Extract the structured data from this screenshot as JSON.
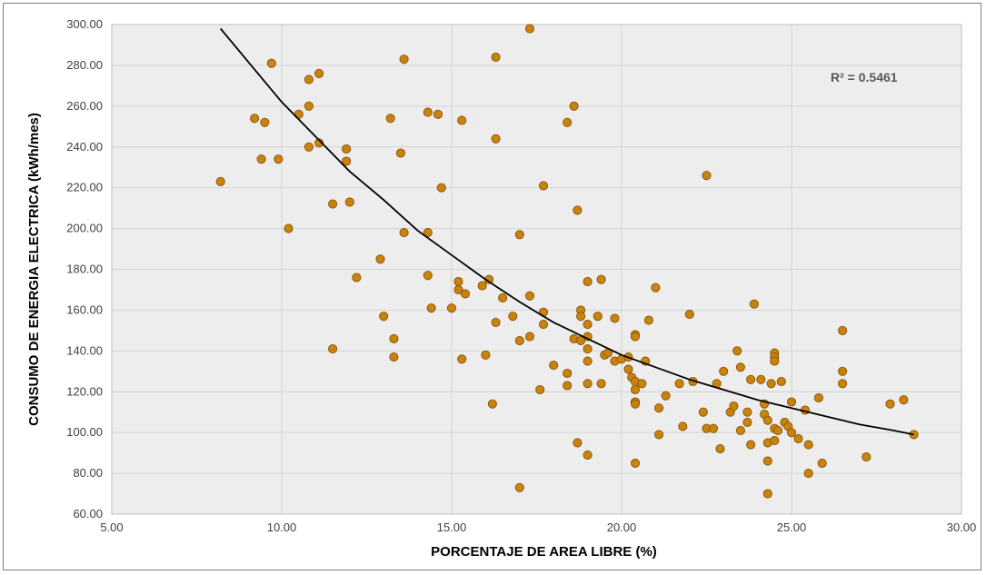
{
  "chart_data": {
    "type": "scatter",
    "title": "",
    "xlabel": "PORCENTAJE DE AREA LIBRE (%)",
    "ylabel": "CONSUMO DE ENERGIA ELECTRICA (kWh/mes)",
    "xlim": [
      5,
      30
    ],
    "ylim": [
      60,
      300
    ],
    "x_ticks": [
      "5.00",
      "10.00",
      "15.00",
      "20.00",
      "25.00",
      "30.00"
    ],
    "y_ticks": [
      "60.00",
      "80.00",
      "100.00",
      "120.00",
      "140.00",
      "160.00",
      "180.00",
      "200.00",
      "220.00",
      "240.00",
      "260.00",
      "280.00",
      "300.00"
    ],
    "grid": true,
    "legend": "none",
    "annotation": "R² = 0.5461",
    "marker_color": "#c8830f",
    "marker_edge": "#8a5200",
    "trendline_color": "#000000",
    "trendline": [
      {
        "x": 8.2,
        "y": 298
      },
      {
        "x": 9,
        "y": 282
      },
      {
        "x": 10,
        "y": 262
      },
      {
        "x": 11,
        "y": 245
      },
      {
        "x": 12,
        "y": 228
      },
      {
        "x": 13,
        "y": 214
      },
      {
        "x": 14,
        "y": 199
      },
      {
        "x": 15,
        "y": 187
      },
      {
        "x": 16,
        "y": 175
      },
      {
        "x": 17,
        "y": 164
      },
      {
        "x": 18,
        "y": 154
      },
      {
        "x": 19,
        "y": 146
      },
      {
        "x": 20,
        "y": 138
      },
      {
        "x": 21,
        "y": 132
      },
      {
        "x": 22,
        "y": 126
      },
      {
        "x": 23,
        "y": 121
      },
      {
        "x": 24,
        "y": 116
      },
      {
        "x": 25,
        "y": 112
      },
      {
        "x": 26,
        "y": 108
      },
      {
        "x": 27,
        "y": 104
      },
      {
        "x": 28,
        "y": 101
      },
      {
        "x": 28.6,
        "y": 99
      }
    ],
    "points": [
      [
        8.2,
        223
      ],
      [
        9.2,
        254
      ],
      [
        9.4,
        234
      ],
      [
        9.5,
        252
      ],
      [
        9.7,
        281
      ],
      [
        9.9,
        234
      ],
      [
        10.2,
        200
      ],
      [
        10.5,
        256
      ],
      [
        10.8,
        273
      ],
      [
        10.8,
        260
      ],
      [
        10.8,
        240
      ],
      [
        11.1,
        276
      ],
      [
        11.1,
        242
      ],
      [
        11.5,
        212
      ],
      [
        11.5,
        141
      ],
      [
        11.9,
        239
      ],
      [
        11.9,
        233
      ],
      [
        12.0,
        213
      ],
      [
        12.2,
        176
      ],
      [
        12.9,
        185
      ],
      [
        13.0,
        157
      ],
      [
        13.2,
        254
      ],
      [
        13.3,
        146
      ],
      [
        13.3,
        137
      ],
      [
        13.5,
        237
      ],
      [
        13.6,
        283
      ],
      [
        13.6,
        198
      ],
      [
        14.3,
        257
      ],
      [
        14.3,
        198
      ],
      [
        14.3,
        177
      ],
      [
        14.4,
        161
      ],
      [
        14.6,
        256
      ],
      [
        14.7,
        220
      ],
      [
        15.0,
        161
      ],
      [
        15.3,
        253
      ],
      [
        15.2,
        174
      ],
      [
        15.2,
        170
      ],
      [
        15.4,
        168
      ],
      [
        15.3,
        136
      ],
      [
        15.9,
        172
      ],
      [
        16.0,
        138
      ],
      [
        16.1,
        175
      ],
      [
        16.3,
        284
      ],
      [
        16.3,
        244
      ],
      [
        16.3,
        154
      ],
      [
        16.2,
        114
      ],
      [
        16.5,
        166
      ],
      [
        16.8,
        157
      ],
      [
        17.0,
        197
      ],
      [
        17.0,
        145
      ],
      [
        17.0,
        73
      ],
      [
        17.3,
        298
      ],
      [
        17.3,
        167
      ],
      [
        17.3,
        147
      ],
      [
        17.6,
        121
      ],
      [
        17.7,
        221
      ],
      [
        17.7,
        159
      ],
      [
        17.7,
        153
      ],
      [
        18.0,
        133
      ],
      [
        18.4,
        252
      ],
      [
        18.4,
        129
      ],
      [
        18.4,
        123
      ],
      [
        18.6,
        260
      ],
      [
        18.6,
        146
      ],
      [
        18.7,
        209
      ],
      [
        18.8,
        160
      ],
      [
        18.8,
        157
      ],
      [
        18.8,
        145
      ],
      [
        18.7,
        95
      ],
      [
        19.0,
        174
      ],
      [
        19.0,
        153
      ],
      [
        19.0,
        147
      ],
      [
        19.0,
        141
      ],
      [
        19.0,
        135
      ],
      [
        19.0,
        124
      ],
      [
        19.0,
        89
      ],
      [
        19.4,
        175
      ],
      [
        19.3,
        157
      ],
      [
        19.4,
        124
      ],
      [
        19.5,
        138
      ],
      [
        19.6,
        139
      ],
      [
        19.8,
        156
      ],
      [
        19.8,
        135
      ],
      [
        20.0,
        136
      ],
      [
        20.2,
        137
      ],
      [
        20.2,
        131
      ],
      [
        20.3,
        127
      ],
      [
        20.4,
        148
      ],
      [
        20.4,
        147
      ],
      [
        20.4,
        125
      ],
      [
        20.4,
        121
      ],
      [
        20.4,
        115
      ],
      [
        20.4,
        114
      ],
      [
        20.4,
        85
      ],
      [
        20.6,
        124
      ],
      [
        20.7,
        135
      ],
      [
        20.8,
        155
      ],
      [
        21.0,
        171
      ],
      [
        21.1,
        112
      ],
      [
        21.1,
        99
      ],
      [
        21.3,
        118
      ],
      [
        21.7,
        124
      ],
      [
        21.8,
        103
      ],
      [
        22.0,
        158
      ],
      [
        22.1,
        125
      ],
      [
        22.4,
        110
      ],
      [
        22.5,
        226
      ],
      [
        22.5,
        102
      ],
      [
        22.7,
        102
      ],
      [
        22.8,
        124
      ],
      [
        22.9,
        92
      ],
      [
        23.0,
        130
      ],
      [
        23.2,
        110
      ],
      [
        23.3,
        113
      ],
      [
        23.4,
        140
      ],
      [
        23.5,
        132
      ],
      [
        23.5,
        101
      ],
      [
        23.7,
        110
      ],
      [
        23.7,
        105
      ],
      [
        23.8,
        126
      ],
      [
        23.8,
        94
      ],
      [
        23.9,
        163
      ],
      [
        24.1,
        126
      ],
      [
        24.2,
        114
      ],
      [
        24.2,
        109
      ],
      [
        24.3,
        106
      ],
      [
        24.4,
        124
      ],
      [
        24.3,
        95
      ],
      [
        24.3,
        86
      ],
      [
        24.3,
        70
      ],
      [
        24.5,
        139
      ],
      [
        24.5,
        137
      ],
      [
        24.5,
        135
      ],
      [
        24.5,
        102
      ],
      [
        24.5,
        96
      ],
      [
        24.6,
        101
      ],
      [
        24.7,
        125
      ],
      [
        24.8,
        105
      ],
      [
        24.9,
        103
      ],
      [
        25.0,
        115
      ],
      [
        25.0,
        100
      ],
      [
        25.2,
        97
      ],
      [
        25.4,
        111
      ],
      [
        25.5,
        94
      ],
      [
        25.5,
        80
      ],
      [
        25.8,
        117
      ],
      [
        25.9,
        85
      ],
      [
        26.5,
        150
      ],
      [
        26.5,
        130
      ],
      [
        26.5,
        124
      ],
      [
        27.2,
        88
      ],
      [
        27.9,
        114
      ],
      [
        28.3,
        116
      ],
      [
        28.6,
        99
      ]
    ]
  }
}
